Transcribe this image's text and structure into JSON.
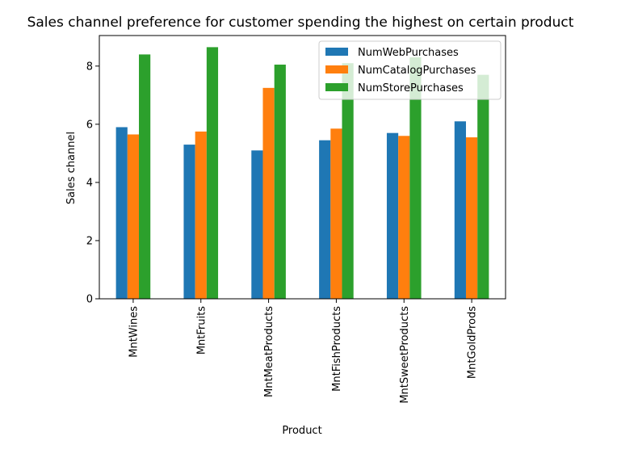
{
  "chart_data": {
    "type": "bar",
    "title": "Sales channel preference for customer spending the highest on certain product",
    "xlabel": "Product",
    "ylabel": "Sales channel",
    "categories": [
      "MntWines",
      "MntFruits",
      "MntMeatProducts",
      "MntFishProducts",
      "MntSweetProducts",
      "MntGoldProds"
    ],
    "series": [
      {
        "name": "NumWebPurchases",
        "color": "#1f77b4",
        "values": [
          5.9,
          5.3,
          5.1,
          5.45,
          5.7,
          6.1
        ]
      },
      {
        "name": "NumCatalogPurchases",
        "color": "#ff7f0e",
        "values": [
          5.65,
          5.75,
          7.25,
          5.85,
          5.6,
          5.55
        ]
      },
      {
        "name": "NumStorePurchases",
        "color": "#2ca02c",
        "values": [
          8.4,
          8.65,
          8.05,
          8.1,
          8.3,
          7.7
        ]
      }
    ],
    "ylim": [
      0,
      9.05
    ],
    "yticks": [
      0,
      2,
      4,
      6,
      8
    ],
    "grid": false,
    "legend_position": "top-right"
  }
}
